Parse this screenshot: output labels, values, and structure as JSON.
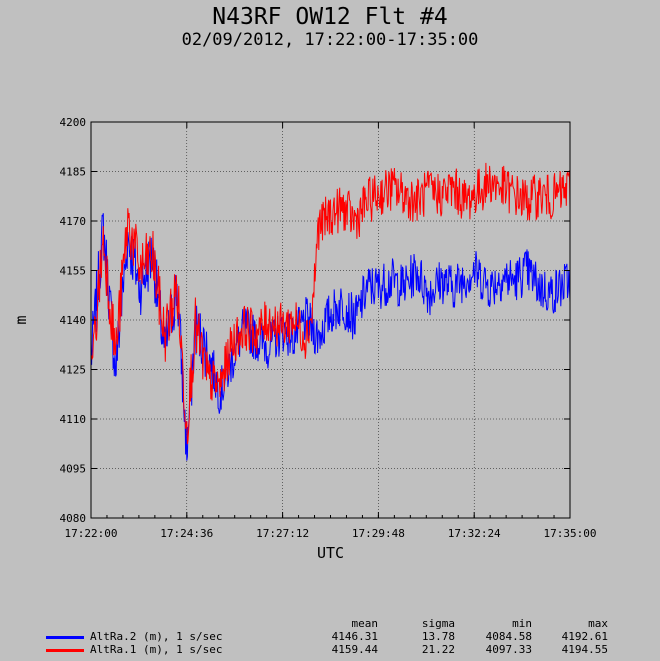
{
  "title": "N43RF OW12 Flt #4",
  "subtitle": "02/09/2012, 17:22:00-17:35:00",
  "chart_data": {
    "type": "line",
    "xlabel": "UTC",
    "ylabel": "m",
    "xlim": [
      "17:22:00",
      "17:35:00"
    ],
    "ylim": [
      4080,
      4200
    ],
    "x_ticks": [
      "17:22:00",
      "17:24:36",
      "17:27:12",
      "17:29:48",
      "17:32:24",
      "17:35:00"
    ],
    "y_ticks": [
      4080,
      4095,
      4110,
      4125,
      4140,
      4155,
      4170,
      4185,
      4200
    ],
    "sample_interval": "1 s",
    "grid": true,
    "series": [
      {
        "name": "AltRa.2 (m), 1 s/sec",
        "color": "#0000ff",
        "x": [
          "17:22:00",
          "17:22:20",
          "17:22:40",
          "17:23:00",
          "17:23:20",
          "17:23:40",
          "17:24:00",
          "17:24:20",
          "17:24:36",
          "17:24:50",
          "17:25:10",
          "17:25:30",
          "17:25:50",
          "17:26:10",
          "17:26:30",
          "17:26:50",
          "17:27:12",
          "17:27:30",
          "17:27:50",
          "17:28:10",
          "17:28:30",
          "17:28:50",
          "17:29:10",
          "17:29:30",
          "17:29:48",
          "17:30:10",
          "17:30:30",
          "17:30:50",
          "17:31:10",
          "17:31:30",
          "17:31:50",
          "17:32:10",
          "17:32:24",
          "17:32:50",
          "17:33:10",
          "17:33:30",
          "17:33:50",
          "17:34:10",
          "17:34:30",
          "17:35:00"
        ],
        "values": [
          4128,
          4168,
          4125,
          4165,
          4150,
          4160,
          4130,
          4150,
          4100,
          4138,
          4130,
          4118,
          4128,
          4138,
          4134,
          4132,
          4137,
          4135,
          4140,
          4135,
          4142,
          4145,
          4140,
          4150,
          4150,
          4152,
          4150,
          4155,
          4148,
          4152,
          4150,
          4153,
          4155,
          4150,
          4153,
          4152,
          4155,
          4150,
          4148,
          4152
        ]
      },
      {
        "name": "AltRa.1 (m), 1 s/sec",
        "color": "#ff0000",
        "x": [
          "17:22:00",
          "17:22:20",
          "17:22:40",
          "17:23:00",
          "17:23:20",
          "17:23:40",
          "17:24:00",
          "17:24:20",
          "17:24:36",
          "17:24:50",
          "17:25:10",
          "17:25:30",
          "17:25:50",
          "17:26:10",
          "17:26:30",
          "17:26:50",
          "17:27:12",
          "17:27:30",
          "17:27:50",
          "17:28:00",
          "17:28:10",
          "17:28:30",
          "17:28:50",
          "17:29:10",
          "17:29:30",
          "17:29:48",
          "17:30:10",
          "17:30:30",
          "17:30:50",
          "17:31:10",
          "17:31:30",
          "17:31:50",
          "17:32:10",
          "17:32:24",
          "17:32:50",
          "17:33:10",
          "17:33:30",
          "17:33:50",
          "17:34:10",
          "17:34:30",
          "17:35:00"
        ],
        "values": [
          4122,
          4165,
          4130,
          4170,
          4155,
          4160,
          4135,
          4150,
          4108,
          4138,
          4122,
          4120,
          4133,
          4138,
          4136,
          4140,
          4138,
          4140,
          4135,
          4142,
          4168,
          4172,
          4174,
          4170,
          4176,
          4178,
          4180,
          4178,
          4176,
          4179,
          4178,
          4180,
          4176,
          4178,
          4182,
          4180,
          4178,
          4176,
          4178,
          4177,
          4180
        ]
      }
    ]
  },
  "stats": {
    "headers": [
      "mean",
      "sigma",
      "min",
      "max"
    ],
    "rows": [
      {
        "label": "AltRa.2 (m), 1 s/sec",
        "color": "#0000ff",
        "mean": "4146.31",
        "sigma": "13.78",
        "min": "4084.58",
        "max": "4192.61"
      },
      {
        "label": "AltRa.1 (m), 1 s/sec",
        "color": "#ff0000",
        "mean": "4159.44",
        "sigma": "21.22",
        "min": "4097.33",
        "max": "4194.55"
      }
    ]
  }
}
